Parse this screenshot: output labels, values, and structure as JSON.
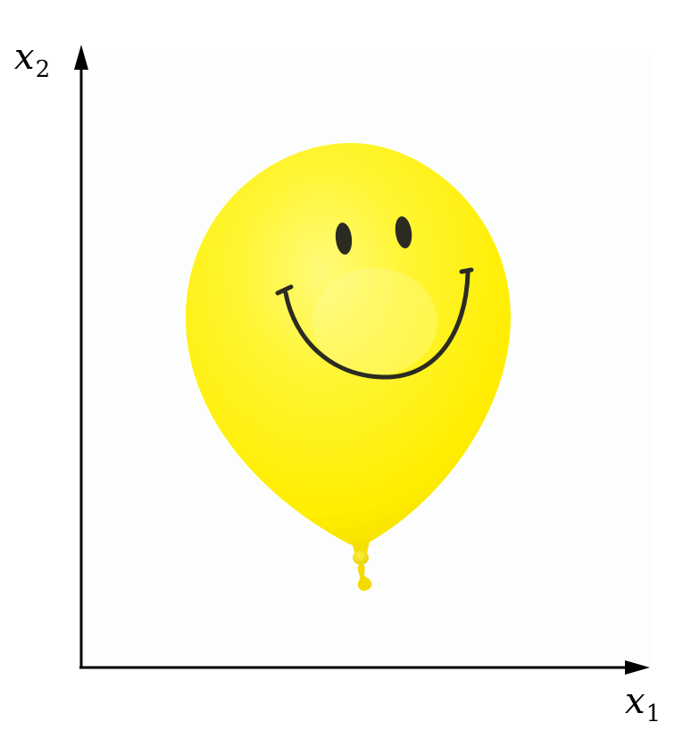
{
  "axes": {
    "x_label": {
      "var": "x",
      "sub": "1"
    },
    "y_label": {
      "var": "x",
      "sub": "2"
    }
  },
  "colors": {
    "axis": "#000000",
    "balloon": "#ffee00",
    "balloon_highlight": "#fffb7a",
    "balloon_shade": "#f0d800",
    "face": "#2b2b22",
    "background": "#fcfefd"
  },
  "illustration": {
    "object": "balloon",
    "face": "smiley",
    "icon": "smiley-balloon-icon"
  }
}
